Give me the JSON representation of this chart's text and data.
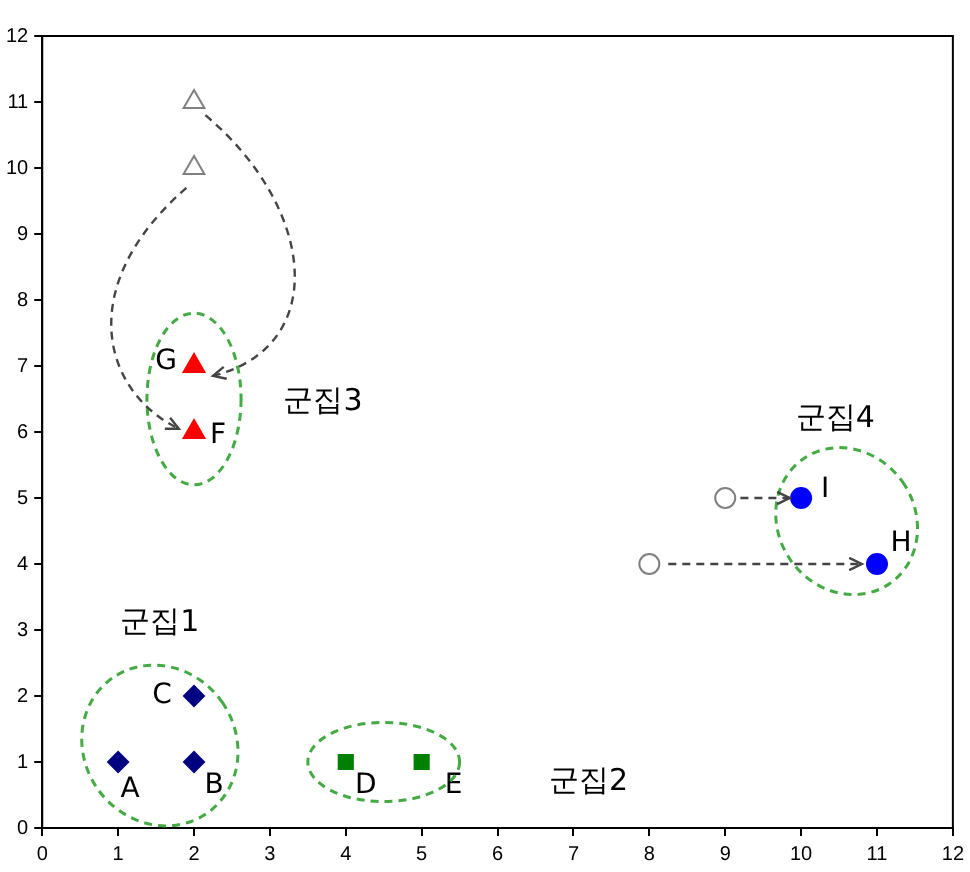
{
  "chart_data": {
    "type": "scatter",
    "xlim": [
      0,
      12
    ],
    "ylim": [
      0,
      12
    ],
    "xticks": [
      0,
      1,
      2,
      3,
      4,
      5,
      6,
      7,
      8,
      9,
      10,
      11,
      12
    ],
    "yticks": [
      0,
      1,
      2,
      3,
      4,
      5,
      6,
      7,
      8,
      9,
      10,
      11,
      12
    ],
    "grid": false,
    "legend": false,
    "series": [
      {
        "color": "#000080",
        "marker": "diamond",
        "x": [
          1,
          2,
          2
        ],
        "values": [
          1,
          1,
          2
        ]
      },
      {
        "color": "#008000",
        "marker": "square",
        "x": [
          4,
          5
        ],
        "values": [
          1,
          1
        ]
      },
      {
        "color": "#ff0000",
        "marker": "triangle",
        "x": [
          2,
          2
        ],
        "values": [
          6,
          7
        ]
      },
      {
        "color": "#808080",
        "marker": "triangle",
        "x": [
          2,
          2
        ],
        "values": [
          10,
          11
        ]
      },
      {
        "color": "#0000ff",
        "marker": "circle",
        "x": [
          10,
          11
        ],
        "values": [
          5,
          4
        ]
      },
      {
        "color": "#808080",
        "marker": "circle",
        "x": [
          8,
          9
        ],
        "values": [
          4,
          5
        ]
      }
    ],
    "annotations": [
      {
        "text": "A",
        "x": 1,
        "y": 1
      },
      {
        "text": "B",
        "x": 2,
        "y": 1
      },
      {
        "text": "C",
        "x": 2,
        "y": 2
      },
      {
        "text": "D",
        "x": 4,
        "y": 1
      },
      {
        "text": "E",
        "x": 5,
        "y": 1
      },
      {
        "text": "F",
        "x": 2,
        "y": 6
      },
      {
        "text": "G",
        "x": 2,
        "y": 7
      },
      {
        "text": "H",
        "x": 11,
        "y": 4
      },
      {
        "text": "I",
        "x": 10,
        "y": 5
      },
      "군집1",
      "군집2",
      "군집3",
      "군집4"
    ]
  }
}
